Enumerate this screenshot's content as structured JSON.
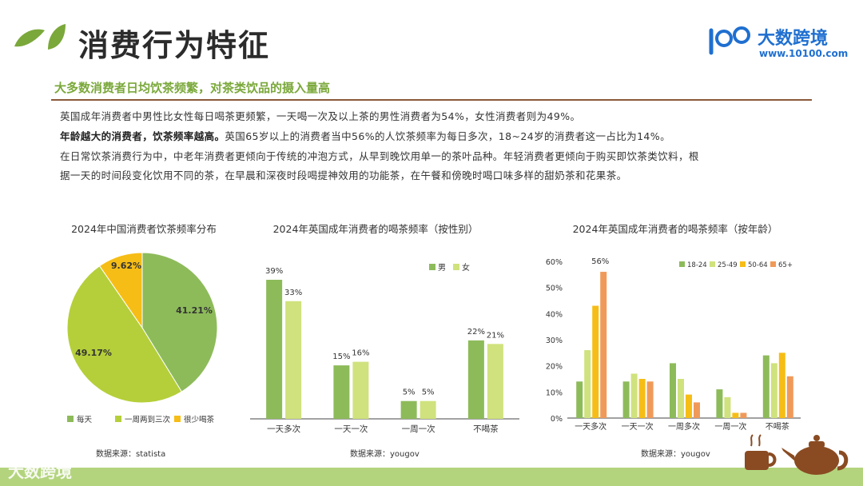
{
  "header": {
    "title": "消费行为特征",
    "brand_name": "大数跨境",
    "brand_url": "www.10100.com",
    "watermark": "大数跨境"
  },
  "subtitle": "大多数消费者日均饮茶频繁，对茶类饮品的摄入量高",
  "paragraphs": {
    "p1": "英国成年消费者中男性比女性每日喝茶更频繁，一天喝一次及以上茶的男性消费者为54%，女性消费者则为49%。",
    "p2_bold": "年龄越大的消费者，饮茶频率越高。",
    "p2_rest": "英国65岁以上的消费者当中56%的人饮茶频率为每日多次，18~24岁的消费者这一占比为14%。",
    "p3": "在日常饮茶消费行为中，中老年消费者更倾向于传统的冲泡方式，从早到晚饮用单一的茶叶品种。年轻消费者更倾向于购买即饮茶类饮料，根",
    "p4": "据一天的时间段变化饮用不同的茶，在早晨和深夜时段喝提神效用的功能茶，在午餐和傍晚时喝口味多样的甜奶茶和花果茶。"
  },
  "chart_data": [
    {
      "type": "pie",
      "title": "2024年中国消费者饮茶频率分布",
      "categories": [
        "每天",
        "一周两到三次",
        "很少喝茶"
      ],
      "values": [
        41.21,
        49.17,
        9.62
      ],
      "value_labels": [
        "41.21%",
        "49.17%",
        "9.62%"
      ],
      "colors": [
        "#8dbb5a",
        "#b5cf3a",
        "#f6bd16"
      ],
      "legend": "bottom",
      "source": "数据来源：statista"
    },
    {
      "type": "bar",
      "title": "2024年英国成年消费者的喝茶频率（按性别）",
      "categories": [
        "一天多次",
        "一天一次",
        "一周一次",
        "不喝茶"
      ],
      "series": [
        {
          "name": "男",
          "values": [
            39,
            15,
            5,
            22
          ],
          "color": "#8dbb5a"
        },
        {
          "name": "女",
          "values": [
            33,
            16,
            5,
            21
          ],
          "color": "#cfe27d"
        }
      ],
      "value_labels": [
        [
          "39%",
          "15%",
          "5%",
          "22%"
        ],
        [
          "33%",
          "16%",
          "5%",
          "21%"
        ]
      ],
      "ylim": [
        0,
        45
      ],
      "legend": "top-right",
      "source": "数据来源：yougov"
    },
    {
      "type": "bar",
      "title": "2024年英国成年消费者的喝茶频率（按年龄）",
      "categories": [
        "一天多次",
        "一天一次",
        "一周多次",
        "一周一次",
        "不喝茶"
      ],
      "series": [
        {
          "name": "18-24",
          "values": [
            14,
            14,
            21,
            11,
            24
          ],
          "color": "#8dbb5a"
        },
        {
          "name": "25-49",
          "values": [
            26,
            17,
            15,
            8,
            21
          ],
          "color": "#cfe27d"
        },
        {
          "name": "50-64",
          "values": [
            43,
            15,
            9,
            2,
            25
          ],
          "color": "#f6bd16"
        },
        {
          "name": "65+",
          "values": [
            56,
            14,
            6,
            2,
            16
          ],
          "color": "#f09a5a"
        }
      ],
      "yticks": [
        "0%",
        "10%",
        "20%",
        "30%",
        "40%",
        "50%",
        "60%"
      ],
      "annotations": [
        "56%"
      ],
      "ylim": [
        0,
        60
      ],
      "legend": "top-right",
      "source": "数据来源：yougov"
    }
  ]
}
